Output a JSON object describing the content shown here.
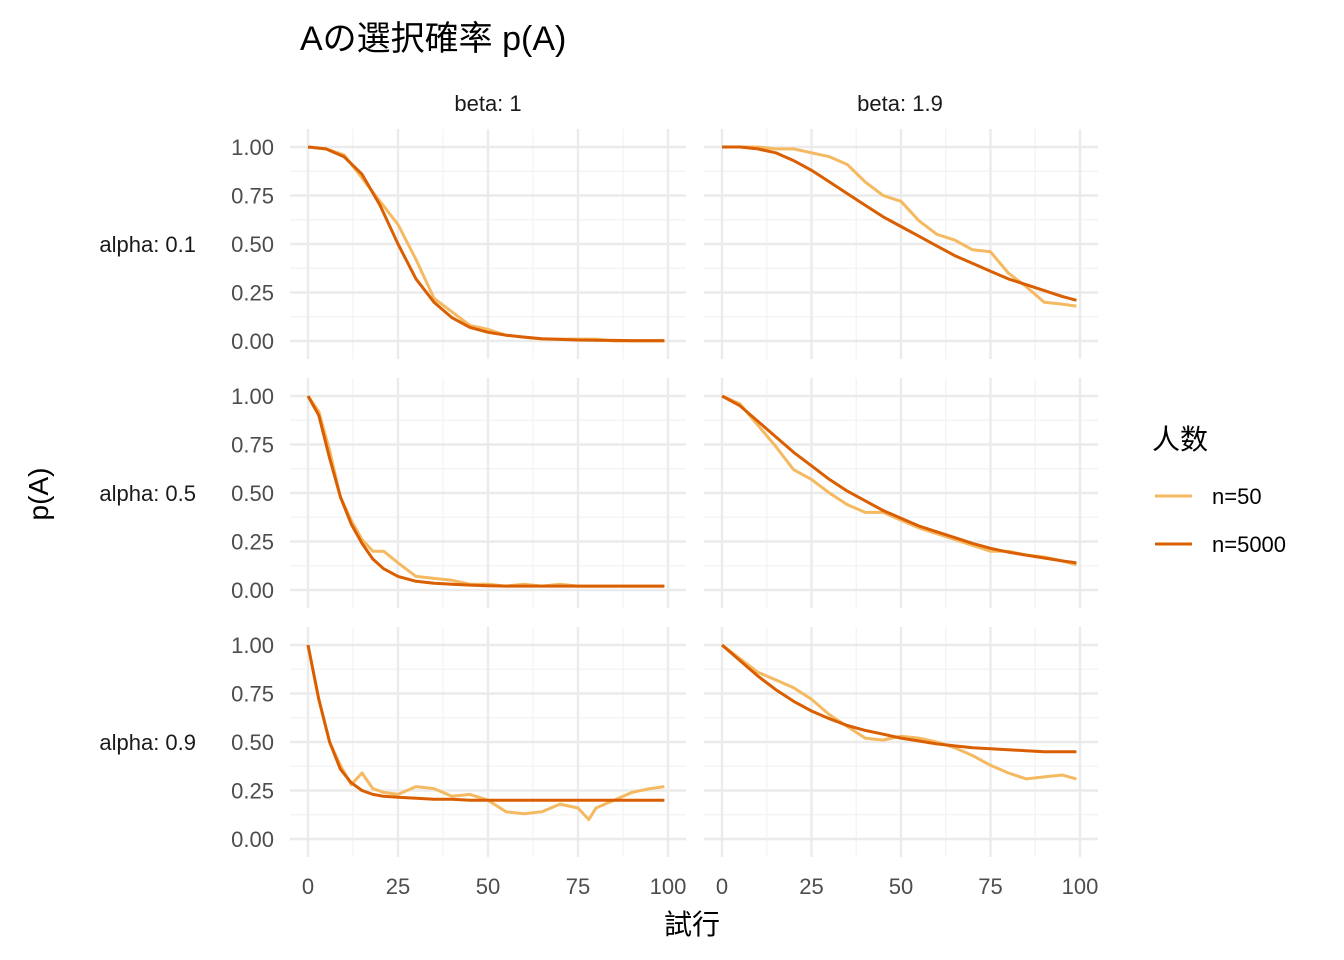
{
  "chart_data": {
    "type": "line",
    "title": "Aの選択確率  p(A)",
    "xlabel": "試行",
    "ylabel": "p(A)",
    "xlim": [
      0,
      100
    ],
    "ylim": [
      0,
      1
    ],
    "x_ticks": [
      "0",
      "25",
      "50",
      "75",
      "100"
    ],
    "y_ticks": [
      "0.00",
      "0.25",
      "0.50",
      "0.75",
      "1.00"
    ],
    "grid": true,
    "legend": {
      "title": "人数",
      "position": "right",
      "items": [
        {
          "label": "n=50",
          "color": "#F5B961"
        },
        {
          "label": "n=5000",
          "color": "#D95F02"
        }
      ]
    },
    "col_labels": [
      "beta: 1",
      "beta: 1.9"
    ],
    "row_labels": [
      "alpha: 0.1",
      "alpha: 0.5",
      "alpha: 0.9"
    ],
    "panels": [
      {
        "row": 0,
        "col": 0,
        "series": [
          {
            "name": "n=50",
            "x": [
              0,
              5,
              10,
              15,
              20,
              25,
              30,
              35,
              40,
              45,
              50,
              55,
              60,
              65,
              70,
              75,
              80,
              85,
              90,
              95,
              99
            ],
            "y": [
              1.0,
              0.99,
              0.96,
              0.84,
              0.72,
              0.6,
              0.42,
              0.22,
              0.15,
              0.08,
              0.06,
              0.03,
              0.02,
              0.01,
              0.01,
              0.01,
              0.01,
              0.0,
              0.0,
              0.0,
              0.0
            ]
          },
          {
            "name": "n=5000",
            "x": [
              0,
              5,
              10,
              15,
              20,
              25,
              30,
              35,
              40,
              45,
              50,
              55,
              60,
              65,
              70,
              75,
              80,
              85,
              90,
              95,
              99
            ],
            "y": [
              1.0,
              0.99,
              0.95,
              0.86,
              0.7,
              0.5,
              0.32,
              0.2,
              0.12,
              0.07,
              0.045,
              0.03,
              0.02,
              0.012,
              0.008,
              0.005,
              0.004,
              0.003,
              0.002,
              0.002,
              0.002
            ]
          }
        ]
      },
      {
        "row": 0,
        "col": 1,
        "series": [
          {
            "name": "n=50",
            "x": [
              0,
              5,
              10,
              15,
              20,
              25,
              30,
              35,
              40,
              45,
              50,
              55,
              60,
              65,
              70,
              75,
              80,
              85,
              90,
              95,
              99
            ],
            "y": [
              1.0,
              1.0,
              1.0,
              0.99,
              0.99,
              0.97,
              0.95,
              0.91,
              0.82,
              0.75,
              0.72,
              0.62,
              0.55,
              0.52,
              0.47,
              0.46,
              0.35,
              0.28,
              0.2,
              0.19,
              0.18
            ]
          },
          {
            "name": "n=5000",
            "x": [
              0,
              5,
              10,
              15,
              20,
              25,
              30,
              35,
              40,
              45,
              50,
              55,
              60,
              65,
              70,
              75,
              80,
              85,
              90,
              95,
              99
            ],
            "y": [
              1.0,
              1.0,
              0.99,
              0.97,
              0.93,
              0.88,
              0.82,
              0.76,
              0.7,
              0.64,
              0.59,
              0.54,
              0.49,
              0.44,
              0.4,
              0.36,
              0.32,
              0.29,
              0.26,
              0.23,
              0.21
            ]
          }
        ]
      },
      {
        "row": 1,
        "col": 0,
        "series": [
          {
            "name": "n=50",
            "x": [
              0,
              3,
              6,
              9,
              12,
              15,
              18,
              21,
              25,
              30,
              35,
              40,
              45,
              50,
              55,
              60,
              65,
              70,
              75,
              80,
              85,
              90,
              95,
              99
            ],
            "y": [
              1.0,
              0.92,
              0.72,
              0.48,
              0.36,
              0.26,
              0.2,
              0.2,
              0.14,
              0.07,
              0.06,
              0.05,
              0.03,
              0.03,
              0.02,
              0.03,
              0.02,
              0.03,
              0.02,
              0.02,
              0.02,
              0.02,
              0.02,
              0.02
            ]
          },
          {
            "name": "n=5000",
            "x": [
              0,
              3,
              6,
              9,
              12,
              15,
              18,
              21,
              25,
              30,
              35,
              40,
              45,
              50,
              55,
              60,
              65,
              70,
              75,
              80,
              85,
              90,
              95,
              99
            ],
            "y": [
              1.0,
              0.9,
              0.68,
              0.48,
              0.34,
              0.24,
              0.16,
              0.11,
              0.07,
              0.045,
              0.035,
              0.03,
              0.025,
              0.022,
              0.02,
              0.02,
              0.02,
              0.02,
              0.02,
              0.02,
              0.02,
              0.02,
              0.02,
              0.02
            ]
          }
        ]
      },
      {
        "row": 1,
        "col": 1,
        "series": [
          {
            "name": "n=50",
            "x": [
              0,
              5,
              10,
              15,
              20,
              25,
              30,
              35,
              40,
              45,
              50,
              55,
              60,
              65,
              70,
              75,
              80,
              85,
              90,
              95,
              99
            ],
            "y": [
              1.0,
              0.96,
              0.85,
              0.74,
              0.62,
              0.57,
              0.5,
              0.44,
              0.4,
              0.4,
              0.36,
              0.32,
              0.29,
              0.26,
              0.23,
              0.2,
              0.2,
              0.18,
              0.17,
              0.15,
              0.13
            ]
          },
          {
            "name": "n=5000",
            "x": [
              0,
              5,
              10,
              15,
              20,
              25,
              30,
              35,
              40,
              45,
              50,
              55,
              60,
              65,
              70,
              75,
              80,
              85,
              90,
              95,
              99
            ],
            "y": [
              1.0,
              0.95,
              0.87,
              0.79,
              0.71,
              0.64,
              0.57,
              0.51,
              0.46,
              0.41,
              0.37,
              0.33,
              0.3,
              0.27,
              0.24,
              0.215,
              0.195,
              0.18,
              0.165,
              0.15,
              0.14
            ]
          }
        ]
      },
      {
        "row": 2,
        "col": 0,
        "series": [
          {
            "name": "n=50",
            "x": [
              0,
              3,
              6,
              9,
              12,
              15,
              18,
              21,
              25,
              30,
              35,
              40,
              45,
              50,
              55,
              60,
              65,
              70,
              75,
              78,
              80,
              85,
              90,
              95,
              99
            ],
            "y": [
              1.0,
              0.72,
              0.5,
              0.38,
              0.28,
              0.34,
              0.26,
              0.24,
              0.23,
              0.27,
              0.26,
              0.22,
              0.23,
              0.2,
              0.14,
              0.13,
              0.14,
              0.18,
              0.16,
              0.1,
              0.16,
              0.2,
              0.24,
              0.26,
              0.27
            ]
          },
          {
            "name": "n=5000",
            "x": [
              0,
              3,
              6,
              9,
              12,
              15,
              18,
              21,
              25,
              30,
              35,
              40,
              45,
              50,
              55,
              60,
              65,
              70,
              75,
              80,
              85,
              90,
              95,
              99
            ],
            "y": [
              1.0,
              0.72,
              0.5,
              0.36,
              0.29,
              0.25,
              0.23,
              0.22,
              0.215,
              0.21,
              0.205,
              0.205,
              0.2,
              0.2,
              0.2,
              0.2,
              0.2,
              0.2,
              0.2,
              0.2,
              0.2,
              0.2,
              0.2,
              0.2
            ]
          }
        ]
      },
      {
        "row": 2,
        "col": 1,
        "series": [
          {
            "name": "n=50",
            "x": [
              0,
              5,
              10,
              15,
              20,
              25,
              30,
              35,
              40,
              45,
              50,
              55,
              60,
              65,
              70,
              75,
              80,
              85,
              90,
              95,
              99
            ],
            "y": [
              1.0,
              0.93,
              0.86,
              0.82,
              0.78,
              0.72,
              0.64,
              0.58,
              0.52,
              0.51,
              0.53,
              0.52,
              0.5,
              0.47,
              0.43,
              0.38,
              0.34,
              0.31,
              0.32,
              0.33,
              0.31
            ]
          },
          {
            "name": "n=5000",
            "x": [
              0,
              5,
              10,
              15,
              20,
              25,
              30,
              35,
              40,
              45,
              50,
              55,
              60,
              65,
              70,
              75,
              80,
              85,
              90,
              95,
              99
            ],
            "y": [
              1.0,
              0.92,
              0.84,
              0.77,
              0.71,
              0.66,
              0.62,
              0.585,
              0.56,
              0.54,
              0.52,
              0.505,
              0.49,
              0.48,
              0.47,
              0.465,
              0.46,
              0.455,
              0.45,
              0.45,
              0.45
            ]
          }
        ]
      }
    ]
  }
}
